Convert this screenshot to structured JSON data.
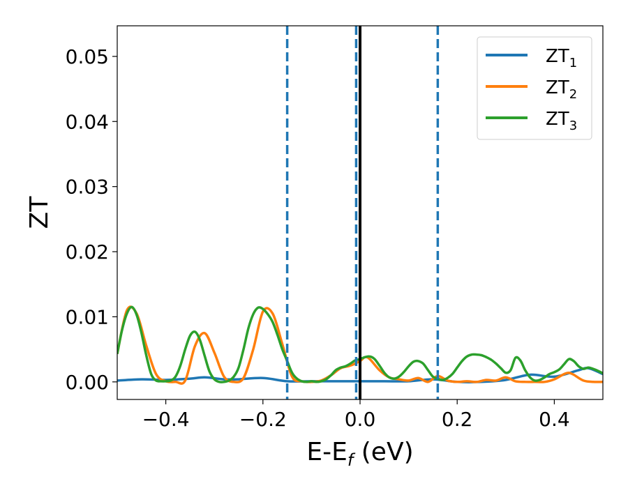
{
  "chart_data": {
    "type": "line",
    "xlabel": {
      "main": "E-E",
      "sub": "f",
      "tail": " (eV)"
    },
    "ylabel": "ZT",
    "xlim": [
      -0.5,
      0.5
    ],
    "ylim": [
      -0.0027,
      0.0547
    ],
    "x_ticks": [
      -0.4,
      -0.2,
      0.0,
      0.2,
      0.4
    ],
    "x_tick_labels": [
      "−0.4",
      "−0.2",
      "0.0",
      "0.2",
      "0.4"
    ],
    "y_ticks": [
      0.0,
      0.01,
      0.02,
      0.03,
      0.04,
      0.05
    ],
    "y_tick_labels": [
      "0.00",
      "0.01",
      "0.02",
      "0.03",
      "0.04",
      "0.05"
    ],
    "grid": false,
    "legend_position": "top-right",
    "vertical_lines": [
      {
        "x": -0.15,
        "style": "dashed",
        "color": "#1f77b4"
      },
      {
        "x": -0.008,
        "style": "dashed",
        "color": "#1f77b4"
      },
      {
        "x": 0.16,
        "style": "dashed",
        "color": "#1f77b4"
      },
      {
        "x": 0.0,
        "style": "solid",
        "color": "#000000"
      }
    ],
    "series": [
      {
        "name": "ZT",
        "sub": "1",
        "color": "#1f77b4",
        "x": [
          -0.5,
          -0.45,
          -0.4,
          -0.35,
          -0.32,
          -0.28,
          -0.25,
          -0.2,
          -0.15,
          -0.1,
          -0.05,
          0.0,
          0.05,
          0.1,
          0.15,
          0.2,
          0.25,
          0.3,
          0.35,
          0.4,
          0.45,
          0.47,
          0.5
        ],
        "y": [
          0.0002,
          0.0004,
          0.0003,
          0.0005,
          0.0007,
          0.0004,
          0.0004,
          0.0006,
          0.0001,
          0.0001,
          0.0001,
          0.0001,
          0.0001,
          0.0001,
          0.0004,
          0.0,
          0.0,
          0.0003,
          0.0011,
          0.0008,
          0.0018,
          0.0021,
          0.0012
        ]
      },
      {
        "name": "ZT",
        "sub": "2",
        "color": "#ff7f0e",
        "x": [
          -0.5,
          -0.48,
          -0.46,
          -0.44,
          -0.42,
          -0.4,
          -0.38,
          -0.36,
          -0.34,
          -0.32,
          -0.3,
          -0.28,
          -0.26,
          -0.24,
          -0.22,
          -0.2,
          -0.18,
          -0.16,
          -0.14,
          -0.12,
          -0.1,
          -0.08,
          -0.06,
          -0.04,
          -0.02,
          0.0,
          0.01,
          0.02,
          0.04,
          0.06,
          0.08,
          0.1,
          0.12,
          0.14,
          0.16,
          0.18,
          0.2,
          0.22,
          0.24,
          0.26,
          0.28,
          0.3,
          0.32,
          0.34,
          0.36,
          0.38,
          0.4,
          0.42,
          0.43,
          0.44,
          0.46,
          0.48,
          0.5
        ],
        "y": [
          0.0043,
          0.011,
          0.0105,
          0.0055,
          0.0012,
          0.0001,
          0.0,
          0.0002,
          0.0055,
          0.0075,
          0.0045,
          0.0008,
          0.0,
          0.0006,
          0.005,
          0.0108,
          0.0105,
          0.0058,
          0.0008,
          0.0001,
          0.0,
          0.0002,
          0.001,
          0.0021,
          0.0025,
          0.0032,
          0.0038,
          0.0035,
          0.0018,
          0.0007,
          0.0004,
          0.0002,
          0.0006,
          0.0,
          0.0009,
          0.0002,
          0.0,
          0.0001,
          0.0,
          0.0003,
          0.0002,
          0.0007,
          0.0001,
          0.0,
          0.0,
          0.0,
          0.0004,
          0.0012,
          0.0014,
          0.0011,
          0.0002,
          0.0,
          0.0
        ]
      },
      {
        "name": "ZT",
        "sub": "3",
        "color": "#2ca02c",
        "x": [
          -0.5,
          -0.49,
          -0.48,
          -0.47,
          -0.46,
          -0.45,
          -0.44,
          -0.43,
          -0.42,
          -0.41,
          -0.4,
          -0.39,
          -0.38,
          -0.37,
          -0.36,
          -0.35,
          -0.34,
          -0.33,
          -0.32,
          -0.31,
          -0.3,
          -0.29,
          -0.28,
          -0.27,
          -0.26,
          -0.25,
          -0.24,
          -0.23,
          -0.22,
          -0.21,
          -0.2,
          -0.19,
          -0.18,
          -0.17,
          -0.16,
          -0.15,
          -0.14,
          -0.13,
          -0.12,
          -0.11,
          -0.1,
          -0.09,
          -0.08,
          -0.07,
          -0.06,
          -0.05,
          -0.04,
          -0.03,
          -0.02,
          -0.01,
          0.0,
          0.01,
          0.02,
          0.03,
          0.04,
          0.05,
          0.06,
          0.07,
          0.08,
          0.09,
          0.1,
          0.11,
          0.12,
          0.13,
          0.14,
          0.15,
          0.16,
          0.17,
          0.18,
          0.19,
          0.2,
          0.21,
          0.22,
          0.23,
          0.24,
          0.25,
          0.26,
          0.27,
          0.28,
          0.29,
          0.3,
          0.31,
          0.32,
          0.33,
          0.34,
          0.35,
          0.36,
          0.37,
          0.38,
          0.39,
          0.4,
          0.41,
          0.42,
          0.43,
          0.44,
          0.45,
          0.46,
          0.47,
          0.48,
          0.49,
          0.5
        ],
        "y": [
          0.0043,
          0.008,
          0.0105,
          0.0115,
          0.0103,
          0.0075,
          0.004,
          0.0012,
          0.0002,
          0.0001,
          0.0001,
          0.0002,
          0.0008,
          0.0025,
          0.005,
          0.0071,
          0.0077,
          0.0065,
          0.004,
          0.0016,
          0.0004,
          0.0,
          0.0,
          0.0002,
          0.0008,
          0.0022,
          0.005,
          0.0082,
          0.0104,
          0.0114,
          0.0112,
          0.0104,
          0.0092,
          0.0072,
          0.005,
          0.0032,
          0.0014,
          0.0005,
          0.0001,
          0.0,
          0.0001,
          0.0,
          0.0001,
          0.0004,
          0.001,
          0.0018,
          0.0022,
          0.0024,
          0.0028,
          0.0033,
          0.0035,
          0.0038,
          0.0039,
          0.0035,
          0.0025,
          0.0014,
          0.0007,
          0.0005,
          0.0008,
          0.0015,
          0.0024,
          0.0031,
          0.0032,
          0.0028,
          0.0018,
          0.0008,
          0.0005,
          0.0003,
          0.0006,
          0.0012,
          0.0022,
          0.0032,
          0.0039,
          0.0042,
          0.0042,
          0.0041,
          0.0038,
          0.0034,
          0.0028,
          0.0021,
          0.0014,
          0.0018,
          0.0037,
          0.0033,
          0.0018,
          0.0007,
          0.0002,
          0.0003,
          0.0007,
          0.0012,
          0.0015,
          0.0019,
          0.0027,
          0.0035,
          0.0032,
          0.0024,
          0.002,
          0.0022,
          0.002,
          0.0017,
          0.0013
        ]
      }
    ]
  }
}
